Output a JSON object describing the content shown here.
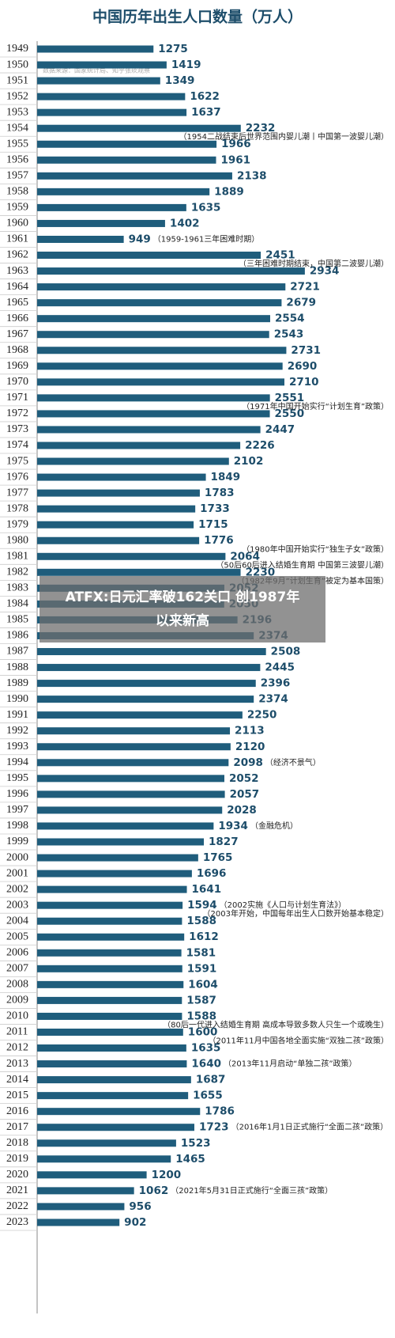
{
  "chart_data": {
    "type": "barh",
    "title": "中国历年出生人口数量（万人）",
    "source": "数据来源：国家统计局、知乎张莰观察",
    "color": "#1f5d7c",
    "categories": [
      "1949",
      "1950",
      "1951",
      "1952",
      "1953",
      "1954",
      "1955",
      "1956",
      "1957",
      "1958",
      "1959",
      "1960",
      "1961",
      "1962",
      "1963",
      "1964",
      "1965",
      "1966",
      "1967",
      "1968",
      "1969",
      "1970",
      "1971",
      "1972",
      "1973",
      "1974",
      "1975",
      "1976",
      "1977",
      "1978",
      "1979",
      "1980",
      "1981",
      "1982",
      "1983",
      "1984",
      "1985",
      "1986",
      "1987",
      "1988",
      "1989",
      "1990",
      "1991",
      "1992",
      "1993",
      "1994",
      "1995",
      "1996",
      "1997",
      "1998",
      "1999",
      "2000",
      "2001",
      "2002",
      "2003",
      "2004",
      "2005",
      "2006",
      "2007",
      "2008",
      "2009",
      "2010",
      "2011",
      "2012",
      "2013",
      "2014",
      "2015",
      "2016",
      "2017",
      "2018",
      "2019",
      "2020",
      "2021",
      "2022",
      "2023"
    ],
    "values": [
      1275,
      1419,
      1349,
      1622,
      1637,
      2232,
      1966,
      1961,
      2138,
      1889,
      1635,
      1402,
      949,
      2451,
      2934,
      2721,
      2679,
      2554,
      2543,
      2731,
      2690,
      2710,
      2551,
      2550,
      2447,
      2226,
      2102,
      1849,
      1783,
      1733,
      1715,
      1776,
      2064,
      2230,
      2052,
      2050,
      2196,
      2374,
      2508,
      2445,
      2396,
      2374,
      2250,
      2113,
      2120,
      2098,
      2052,
      2057,
      2028,
      1934,
      1827,
      1765,
      1696,
      1641,
      1594,
      1588,
      1612,
      1581,
      1591,
      1604,
      1587,
      1588,
      1600,
      1635,
      1640,
      1687,
      1655,
      1786,
      1723,
      1523,
      1465,
      1200,
      1062,
      956,
      902
    ],
    "annotations": [
      {
        "year": "1955",
        "text": "（1954二战结束后世界范围内婴儿潮丨中国第一波婴儿潮）"
      },
      {
        "year": "1961",
        "text": "（1959-1961三年困难时期）"
      },
      {
        "year": "1963",
        "text": "（三年困难时期结束，中国第二波婴儿潮）"
      },
      {
        "year": "1972",
        "text": "（1971年中国开始实行“计划生育”政策）"
      },
      {
        "year": "1981",
        "text": "（1980年中国开始实行“独生子女”政策）"
      },
      {
        "year": "1982",
        "text": "（50后60后进入结婚生育期 中国第三波婴儿潮）"
      },
      {
        "year": "1983",
        "text": "（1982年9月“计划生育”被定为基本国策）"
      },
      {
        "year": "1994",
        "text": "（经济不景气）"
      },
      {
        "year": "1998",
        "text": "（金融危机）"
      },
      {
        "year": "2003",
        "text": "（2002实施《人口与计划生育法》）"
      },
      {
        "year": "2004",
        "text": "（2003年开始，中国每年出生人口数开始基本稳定）"
      },
      {
        "year": "2011",
        "text": "（80后一代进入结婚生育期 高成本导致多数人只生一个或晚生）"
      },
      {
        "year": "2012",
        "text": "（2011年11月中国各地全面实施“双独二孩”政策）"
      },
      {
        "year": "2013",
        "text": "（2013年11月启动“单独二孩”政策）"
      },
      {
        "year": "2017",
        "text": "（2016年1月1日正式施行“全面二孩”政策）"
      },
      {
        "year": "2021",
        "text": "（2021年5月31日正式施行“全面三孩”政策）"
      }
    ]
  },
  "overlay": {
    "line1": "ATFX:日元汇率破162关口 创1987年",
    "line2": "以来新高"
  }
}
